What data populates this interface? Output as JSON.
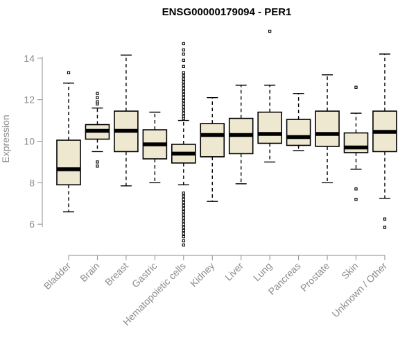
{
  "chart_data": {
    "type": "box",
    "title": "ENSG00000179094 - PER1",
    "xlabel": "",
    "ylabel": "Expression",
    "ylim": [
      4.9,
      15.4
    ],
    "y_ticks": [
      6,
      8,
      10,
      12,
      14
    ],
    "grid": false,
    "box_color": "#efe8d1",
    "categories": [
      "Bladder",
      "Brain",
      "Breast",
      "Gastric",
      "Hematopoietic cells",
      "Kidney",
      "Liver",
      "Lung",
      "Pancreas",
      "Prostate",
      "Skin",
      "Unknown / Other"
    ],
    "boxes": [
      {
        "whisker_low": 6.6,
        "q1": 7.9,
        "median": 8.65,
        "q3": 10.05,
        "whisker_high": 12.8,
        "outliers": [
          13.3
        ]
      },
      {
        "whisker_low": 9.5,
        "q1": 10.1,
        "median": 10.5,
        "q3": 10.8,
        "whisker_high": 11.6,
        "outliers": [
          8.8,
          9.0,
          11.8,
          11.9,
          12.1,
          12.3
        ]
      },
      {
        "whisker_low": 7.85,
        "q1": 9.5,
        "median": 10.5,
        "q3": 11.45,
        "whisker_high": 14.15,
        "outliers": []
      },
      {
        "whisker_low": 8.0,
        "q1": 9.15,
        "median": 9.85,
        "q3": 10.55,
        "whisker_high": 11.4,
        "outliers": []
      },
      {
        "whisker_low": 7.9,
        "q1": 8.95,
        "median": 9.4,
        "q3": 9.85,
        "whisker_high": 11.0,
        "outliers": [
          5.0,
          5.2,
          5.4,
          5.55,
          5.7,
          5.85,
          6.0,
          6.15,
          6.3,
          6.45,
          6.6,
          6.75,
          6.9,
          7.05,
          7.2,
          7.35,
          7.5,
          11.1,
          11.2,
          11.35,
          11.5,
          11.65,
          11.8,
          11.95,
          12.1,
          12.25,
          12.4,
          12.55,
          12.7,
          12.85,
          13.0,
          13.15,
          13.3,
          13.6,
          13.9,
          14.2,
          14.4,
          14.7
        ]
      },
      {
        "whisker_low": 7.1,
        "q1": 9.25,
        "median": 10.3,
        "q3": 10.85,
        "whisker_high": 12.1,
        "outliers": []
      },
      {
        "whisker_low": 7.95,
        "q1": 9.4,
        "median": 10.3,
        "q3": 11.1,
        "whisker_high": 12.7,
        "outliers": []
      },
      {
        "whisker_low": 9.0,
        "q1": 9.9,
        "median": 10.35,
        "q3": 11.4,
        "whisker_high": 12.7,
        "outliers": [
          15.3
        ]
      },
      {
        "whisker_low": 9.55,
        "q1": 9.8,
        "median": 10.2,
        "q3": 11.05,
        "whisker_high": 12.3,
        "outliers": []
      },
      {
        "whisker_low": 8.0,
        "q1": 9.75,
        "median": 10.35,
        "q3": 11.45,
        "whisker_high": 13.2,
        "outliers": []
      },
      {
        "whisker_low": 8.65,
        "q1": 9.45,
        "median": 9.7,
        "q3": 10.4,
        "whisker_high": 11.35,
        "outliers": [
          7.2,
          7.7,
          12.6
        ]
      },
      {
        "whisker_low": 7.25,
        "q1": 9.5,
        "median": 10.45,
        "q3": 11.45,
        "whisker_high": 14.2,
        "outliers": [
          5.85,
          6.25
        ]
      }
    ]
  }
}
